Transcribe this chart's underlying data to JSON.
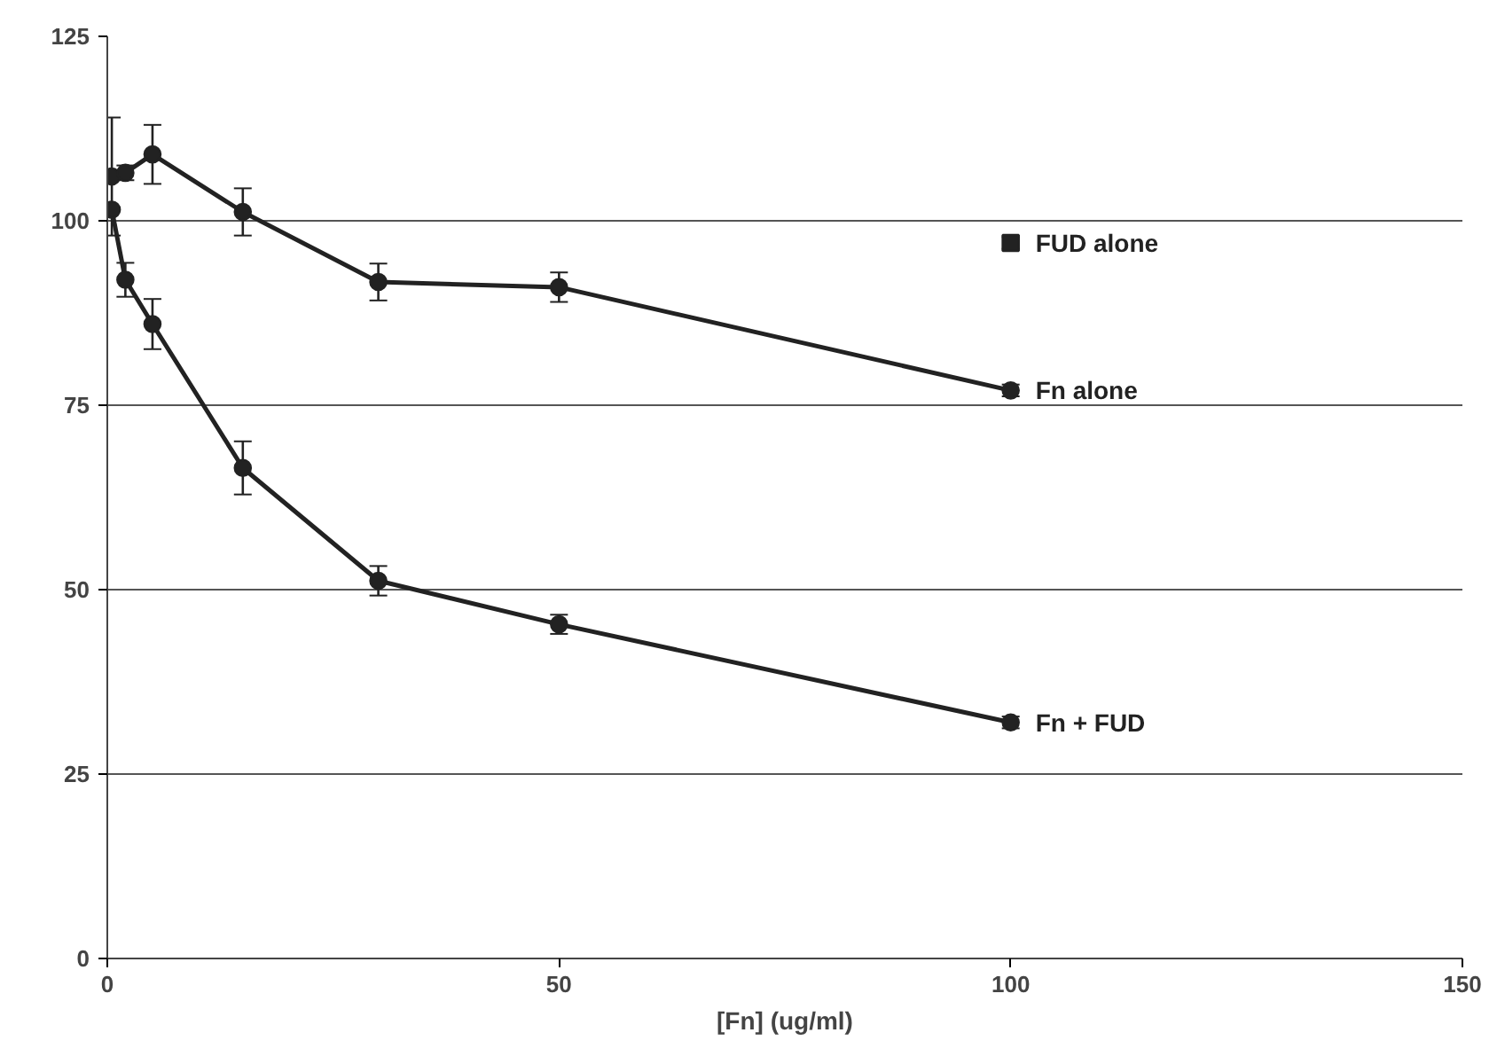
{
  "chart_data": {
    "type": "line",
    "xlabel": "[Fn] (ug/ml)",
    "xlim": [
      0,
      150
    ],
    "xticks": [
      0,
      50,
      100,
      150
    ],
    "ylim": [
      0,
      125
    ],
    "yticks": [
      0,
      25,
      50,
      75,
      100,
      125
    ],
    "grid": "y",
    "marker": "circle",
    "line_style": "solid",
    "series": [
      {
        "name": "Fn alone",
        "color": "#222222",
        "x": [
          0.5,
          2,
          5,
          15,
          30,
          50,
          100
        ],
        "values": [
          106,
          106.5,
          109,
          101.2,
          91.7,
          91,
          77
        ],
        "errors": [
          8,
          1,
          4,
          3.2,
          2.5,
          2,
          0.8
        ]
      },
      {
        "name": "Fn + FUD",
        "color": "#222222",
        "x": [
          0.5,
          2,
          5,
          15,
          30,
          50,
          100
        ],
        "values": [
          101.5,
          92,
          86,
          66.5,
          51.2,
          45.3,
          32
        ],
        "errors": [
          null,
          2.3,
          3.4,
          3.6,
          2,
          1.3,
          0.8
        ]
      },
      {
        "name": "FUD alone",
        "type": "scatter",
        "marker": "square",
        "color": "#222222",
        "x": [
          100
        ],
        "values": [
          97
        ],
        "errors": [
          0.8
        ]
      }
    ]
  }
}
